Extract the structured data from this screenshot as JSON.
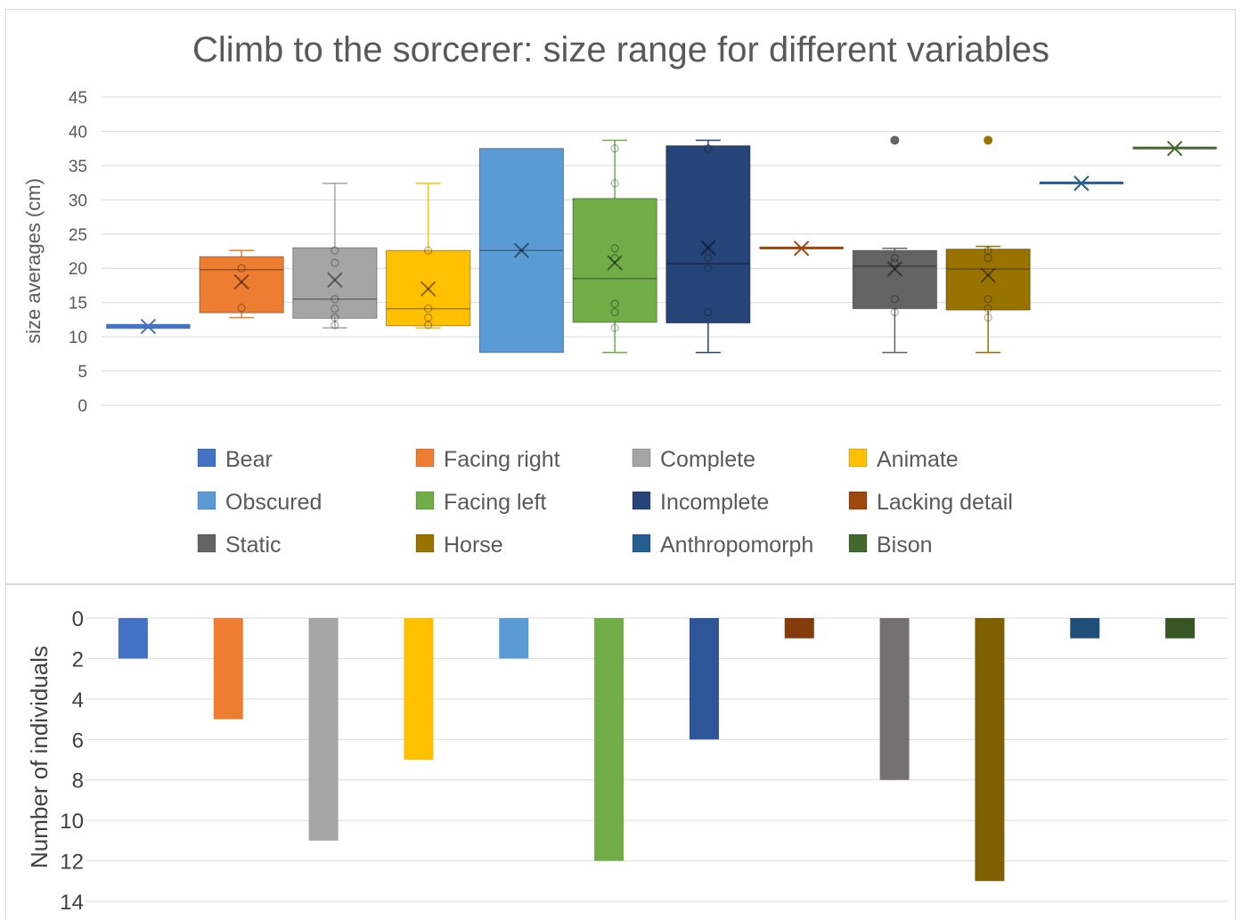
{
  "chart_data": [
    {
      "type": "box",
      "title": "Climb to the sorcerer: size range for different variables",
      "xlabel": "",
      "ylabel": "size averages (cm)",
      "ylim": [
        0,
        45
      ],
      "yticks": [
        "0",
        "5",
        "10",
        "15",
        "20",
        "25",
        "30",
        "35",
        "40",
        "45"
      ],
      "grid": true,
      "legend_position": "bottom",
      "series": [
        {
          "name": "Bear",
          "color": "#4472c4",
          "min": 11.3,
          "q1": 11.3,
          "median": 11.3,
          "q3": 11.6,
          "max": 11.6,
          "mean": 11.5,
          "points": [],
          "outliers": []
        },
        {
          "name": "Facing right",
          "color": "#ed7d31",
          "min": 12.8,
          "q1": 13.5,
          "median": 19.8,
          "q3": 21.7,
          "max": 22.6,
          "mean": 18.0,
          "points": [
            14.2,
            20.0
          ],
          "outliers": []
        },
        {
          "name": "Complete",
          "color": "#a5a5a5",
          "min": 11.3,
          "q1": 12.7,
          "median": 15.5,
          "q3": 23.0,
          "max": 32.4,
          "mean": 18.3,
          "points": [
            11.7,
            12.8,
            14.1,
            15.5,
            20.8,
            22.6
          ],
          "outliers": []
        },
        {
          "name": "Animate",
          "color": "#ffc000",
          "min": 11.3,
          "q1": 11.6,
          "median": 14.1,
          "q3": 22.6,
          "max": 32.4,
          "mean": 17.0,
          "points": [
            11.7,
            12.8,
            14.1,
            22.6
          ],
          "outliers": []
        },
        {
          "name": "Obscured",
          "color": "#5b9bd5",
          "min": 7.7,
          "q1": 7.7,
          "median": 22.6,
          "q3": 37.5,
          "max": 37.5,
          "mean": 22.6,
          "points": [],
          "outliers": []
        },
        {
          "name": "Facing left",
          "color": "#70ad47",
          "min": 7.7,
          "q1": 12.1,
          "median": 18.5,
          "q3": 30.2,
          "max": 38.7,
          "mean": 20.8,
          "points": [
            11.3,
            13.6,
            14.8,
            21.5,
            22.9,
            32.4,
            37.5
          ],
          "outliers": []
        },
        {
          "name": "Incomplete",
          "color": "#264478",
          "min": 7.7,
          "q1": 12.0,
          "median": 20.7,
          "q3": 37.9,
          "max": 38.7,
          "mean": 23.0,
          "points": [
            13.6,
            20.0,
            21.5,
            37.5
          ],
          "outliers": []
        },
        {
          "name": "Lacking detail",
          "color": "#9e480e",
          "min": 22.9,
          "q1": 22.9,
          "median": 22.9,
          "q3": 22.9,
          "max": 22.9,
          "mean": 22.9,
          "points": [],
          "outliers": []
        },
        {
          "name": "Static",
          "color": "#636363",
          "min": 7.7,
          "q1": 14.1,
          "median": 20.3,
          "q3": 22.6,
          "max": 22.9,
          "mean": 19.9,
          "points": [
            13.6,
            15.5,
            20.8,
            21.5
          ],
          "outliers": [
            38.7
          ]
        },
        {
          "name": "Horse",
          "color": "#997300",
          "min": 7.7,
          "q1": 13.9,
          "median": 19.9,
          "q3": 22.8,
          "max": 23.2,
          "mean": 19.0,
          "points": [
            12.8,
            14.1,
            15.5,
            21.5,
            22.6
          ],
          "outliers": [
            38.7
          ]
        },
        {
          "name": "Anthropomorph",
          "color": "#255e91",
          "min": 32.4,
          "q1": 32.4,
          "median": 32.4,
          "q3": 32.4,
          "max": 32.4,
          "mean": 32.4,
          "points": [],
          "outliers": []
        },
        {
          "name": "Bison",
          "color": "#43682b",
          "min": 37.5,
          "q1": 37.5,
          "median": 37.5,
          "q3": 37.5,
          "max": 37.5,
          "mean": 37.5,
          "points": [],
          "outliers": []
        }
      ]
    },
    {
      "type": "bar",
      "title": "",
      "xlabel": "",
      "ylabel": "Number of individuals",
      "ylim": [
        0,
        14
      ],
      "y_axis_reversed": true,
      "yticks": [
        "0",
        "2",
        "4",
        "6",
        "8",
        "10",
        "12",
        "14"
      ],
      "grid": true,
      "categories": [
        "Bear",
        "Facing right",
        "Complete",
        "Animate",
        "Obscured",
        "Facing left",
        "Incomplete",
        "Lacking detail",
        "Static",
        "Horse",
        "Anthropomorph",
        "Bison"
      ],
      "values": [
        2,
        5,
        11,
        7,
        2,
        12,
        6,
        1,
        8,
        13,
        1,
        1
      ],
      "colors": [
        "#4472c4",
        "#ed7d31",
        "#a5a5a5",
        "#ffc000",
        "#5b9bd5",
        "#70ad47",
        "#2e5597",
        "#843c0c",
        "#767171",
        "#7f6000",
        "#1f4e79",
        "#375623"
      ]
    }
  ]
}
